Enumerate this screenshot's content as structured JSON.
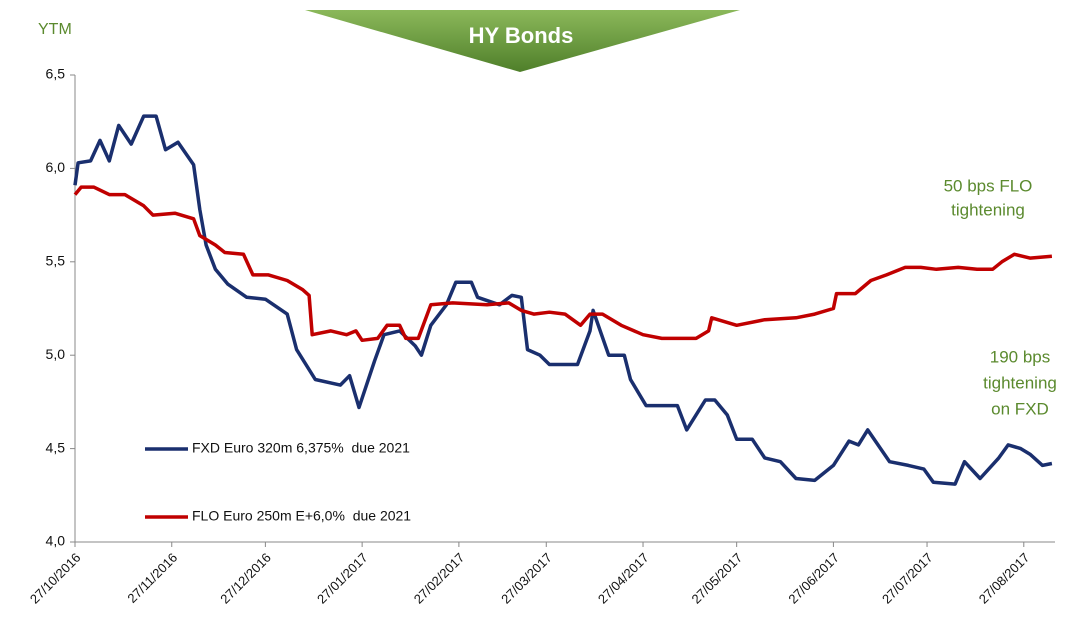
{
  "chart_data": {
    "type": "line",
    "title": "HY Bonds",
    "ylabel": "YTM",
    "annotations": [
      "50 bps FLO",
      "tightening",
      "190 bps",
      "tightening",
      "on FXD"
    ],
    "legend": "lower-left",
    "xlim": [
      "2016-10-27",
      "2017-09-06"
    ],
    "xticks": [
      {
        "value": "2016-10-27",
        "label": "27/10/2016"
      },
      {
        "value": "2016-11-27",
        "label": "27/11/2016"
      },
      {
        "value": "2016-12-27",
        "label": "27/12/2016"
      },
      {
        "value": "2017-01-27",
        "label": "27/01/2017"
      },
      {
        "value": "2017-02-27",
        "label": "27/02/2017"
      },
      {
        "value": "2017-03-27",
        "label": "27/03/2017"
      },
      {
        "value": "2017-04-27",
        "label": "27/04/2017"
      },
      {
        "value": "2017-05-27",
        "label": "27/05/2017"
      },
      {
        "value": "2017-06-27",
        "label": "27/06/2017"
      },
      {
        "value": "2017-07-27",
        "label": "27/07/2017"
      },
      {
        "value": "2017-08-27",
        "label": "27/08/2017"
      }
    ],
    "ylim": [
      4.0,
      6.5
    ],
    "yticks": [
      {
        "value": 4.0,
        "label": "4,0"
      },
      {
        "value": 4.5,
        "label": "4,5"
      },
      {
        "value": 5.0,
        "label": "5,0"
      },
      {
        "value": 5.5,
        "label": "5,5"
      },
      {
        "value": 6.0,
        "label": "6,0"
      },
      {
        "value": 6.5,
        "label": "6,5"
      }
    ],
    "series": [
      {
        "name": "FXD Euro 320m 6,375%  due 2021",
        "color": "#1a2f6e",
        "x": [
          "2016-10-27",
          "2016-10-28",
          "2016-11-01",
          "2016-11-04",
          "2016-11-07",
          "2016-11-10",
          "2016-11-14",
          "2016-11-18",
          "2016-11-22",
          "2016-11-25",
          "2016-11-29",
          "2016-12-04",
          "2016-12-06",
          "2016-12-08",
          "2016-12-11",
          "2016-12-15",
          "2016-12-21",
          "2016-12-27",
          "2017-01-03",
          "2017-01-06",
          "2017-01-12",
          "2017-01-20",
          "2017-01-23",
          "2017-01-26",
          "2017-01-31",
          "2017-02-03",
          "2017-02-08",
          "2017-02-13",
          "2017-02-15",
          "2017-02-18",
          "2017-02-23",
          "2017-02-26",
          "2017-03-03",
          "2017-03-05",
          "2017-03-12",
          "2017-03-16",
          "2017-03-19",
          "2017-03-21",
          "2017-03-25",
          "2017-03-28",
          "2017-04-06",
          "2017-04-10",
          "2017-04-11",
          "2017-04-16",
          "2017-04-21",
          "2017-04-23",
          "2017-04-28",
          "2017-05-03",
          "2017-05-08",
          "2017-05-11",
          "2017-05-17",
          "2017-05-20",
          "2017-05-24",
          "2017-05-27",
          "2017-06-01",
          "2017-06-05",
          "2017-06-10",
          "2017-06-15",
          "2017-06-21",
          "2017-06-27",
          "2017-07-02",
          "2017-07-05",
          "2017-07-08",
          "2017-07-15",
          "2017-07-21",
          "2017-07-26",
          "2017-07-29",
          "2017-08-05",
          "2017-08-08",
          "2017-08-13",
          "2017-08-19",
          "2017-08-22",
          "2017-08-26",
          "2017-08-29",
          "2017-09-02",
          "2017-09-05"
        ],
        "values": [
          5.91,
          6.03,
          6.04,
          6.15,
          6.04,
          6.23,
          6.13,
          6.28,
          6.28,
          6.1,
          6.14,
          6.02,
          5.78,
          5.59,
          5.46,
          5.38,
          5.31,
          5.3,
          5.22,
          5.03,
          4.87,
          4.84,
          4.89,
          4.72,
          4.97,
          5.11,
          5.13,
          5.05,
          5.0,
          5.16,
          5.27,
          5.39,
          5.39,
          5.31,
          5.27,
          5.32,
          5.31,
          5.03,
          5.0,
          4.95,
          4.95,
          5.13,
          5.24,
          5.0,
          5.0,
          4.87,
          4.73,
          4.73,
          4.73,
          4.6,
          4.76,
          4.76,
          4.68,
          4.55,
          4.55,
          4.45,
          4.43,
          4.34,
          4.33,
          4.41,
          4.54,
          4.52,
          4.6,
          4.43,
          4.41,
          4.39,
          4.32,
          4.31,
          4.43,
          4.34,
          4.45,
          4.52,
          4.5,
          4.47,
          4.41,
          4.42
        ]
      },
      {
        "name": "FLO Euro 250m E+6,0%  due 2021",
        "color": "#c00000",
        "x": [
          "2016-10-27",
          "2016-10-29",
          "2016-11-02",
          "2016-11-07",
          "2016-11-12",
          "2016-11-18",
          "2016-11-21",
          "2016-11-28",
          "2016-12-04",
          "2016-12-06",
          "2016-12-11",
          "2016-12-14",
          "2016-12-20",
          "2016-12-23",
          "2016-12-28",
          "2017-01-03",
          "2017-01-08",
          "2017-01-10",
          "2017-01-11",
          "2017-01-17",
          "2017-01-22",
          "2017-01-25",
          "2017-01-27",
          "2017-02-01",
          "2017-02-04",
          "2017-02-08",
          "2017-02-10",
          "2017-02-14",
          "2017-02-18",
          "2017-02-25",
          "2017-03-08",
          "2017-03-15",
          "2017-03-19",
          "2017-03-23",
          "2017-03-28",
          "2017-04-02",
          "2017-04-07",
          "2017-04-10",
          "2017-04-14",
          "2017-04-20",
          "2017-04-27",
          "2017-05-03",
          "2017-05-14",
          "2017-05-18",
          "2017-05-19",
          "2017-05-27",
          "2017-06-05",
          "2017-06-15",
          "2017-06-21",
          "2017-06-27",
          "2017-06-28",
          "2017-07-04",
          "2017-07-09",
          "2017-07-14",
          "2017-07-20",
          "2017-07-25",
          "2017-07-30",
          "2017-08-06",
          "2017-08-12",
          "2017-08-17",
          "2017-08-20",
          "2017-08-24",
          "2017-08-29",
          "2017-09-05"
        ],
        "values": [
          5.86,
          5.9,
          5.9,
          5.86,
          5.86,
          5.8,
          5.75,
          5.76,
          5.73,
          5.64,
          5.59,
          5.55,
          5.54,
          5.43,
          5.43,
          5.4,
          5.35,
          5.32,
          5.11,
          5.13,
          5.11,
          5.13,
          5.08,
          5.09,
          5.16,
          5.16,
          5.09,
          5.09,
          5.27,
          5.28,
          5.27,
          5.28,
          5.24,
          5.22,
          5.23,
          5.22,
          5.16,
          5.22,
          5.22,
          5.16,
          5.11,
          5.09,
          5.09,
          5.13,
          5.2,
          5.16,
          5.19,
          5.2,
          5.22,
          5.25,
          5.33,
          5.33,
          5.4,
          5.43,
          5.47,
          5.47,
          5.46,
          5.47,
          5.46,
          5.46,
          5.5,
          5.54,
          5.52,
          5.53
        ]
      }
    ]
  }
}
